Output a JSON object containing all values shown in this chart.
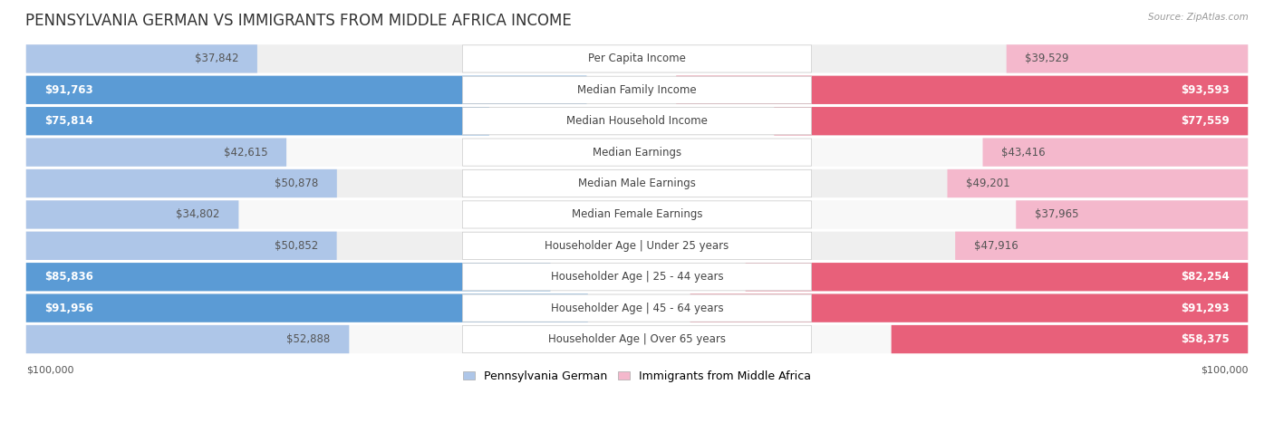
{
  "title": "PENNSYLVANIA GERMAN VS IMMIGRANTS FROM MIDDLE AFRICA INCOME",
  "source": "Source: ZipAtlas.com",
  "categories": [
    "Per Capita Income",
    "Median Family Income",
    "Median Household Income",
    "Median Earnings",
    "Median Male Earnings",
    "Median Female Earnings",
    "Householder Age | Under 25 years",
    "Householder Age | 25 - 44 years",
    "Householder Age | 45 - 64 years",
    "Householder Age | Over 65 years"
  ],
  "pennsylvania_values": [
    37842,
    91763,
    75814,
    42615,
    50878,
    34802,
    50852,
    85836,
    91956,
    52888
  ],
  "immigrants_values": [
    39529,
    93593,
    77559,
    43416,
    49201,
    37965,
    47916,
    82254,
    91293,
    58375
  ],
  "pennsylvania_labels": [
    "$37,842",
    "$91,763",
    "$75,814",
    "$42,615",
    "$50,878",
    "$34,802",
    "$50,852",
    "$85,836",
    "$91,956",
    "$52,888"
  ],
  "immigrants_labels": [
    "$39,529",
    "$93,593",
    "$77,559",
    "$43,416",
    "$49,201",
    "$37,965",
    "$47,916",
    "$82,254",
    "$91,293",
    "$58,375"
  ],
  "max_value": 100000,
  "pa_color_light": "#aec6e8",
  "pa_color_dark": "#5b9bd5",
  "imm_color_light": "#f4b8cc",
  "imm_color_dark": "#e8607a",
  "bg_row_odd": "#efefef",
  "bg_row_even": "#f8f8f8",
  "title_fontsize": 12,
  "label_fontsize": 8.5,
  "category_fontsize": 8.5,
  "legend_fontsize": 9,
  "dark_threshold": 55000
}
